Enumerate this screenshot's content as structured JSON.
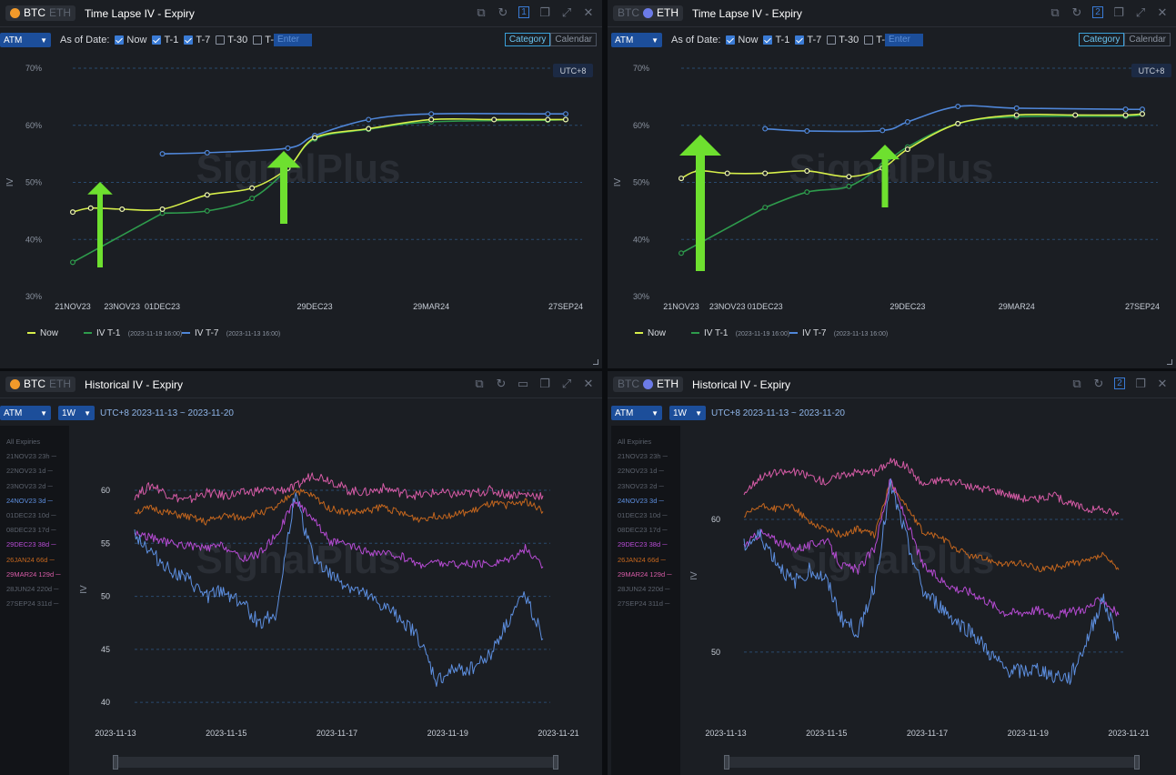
{
  "colors": {
    "now": "#d6ee4a",
    "t1": "#2e9b4c",
    "t7": "#4f86d8",
    "arrow": "#6ee02f",
    "m24": "#5d8fe0",
    "d29": "#b64bd3",
    "j26": "#c4661e",
    "m29": "#d65ba6",
    "grid": "#2a4a6e"
  },
  "common": {
    "atm": "ATM",
    "as_of": "As of Date:",
    "now": "Now",
    "t1": "T-1",
    "t7": "T-7",
    "t30": "T-30",
    "t_custom": "T-",
    "enter": "Enter",
    "category": "Category",
    "calendar": "Calendar",
    "utc": "UTC+8",
    "watermark": "SignalPlus",
    "btc": "BTC",
    "eth": "ETH",
    "period": "1W",
    "range": "UTC+8 2023-11-13 ~ 2023-11-20",
    "y_label": "IV"
  },
  "panels": {
    "p0": {
      "coin": "BTC",
      "title": "Time Lapse IV - Expiry",
      "badge": "1"
    },
    "p1": {
      "coin": "ETH",
      "title": "Time Lapse IV - Expiry",
      "badge": "2"
    },
    "p2": {
      "coin": "BTC",
      "title": "Historical IV - Expiry"
    },
    "p3": {
      "coin": "ETH",
      "title": "Historical IV - Expiry",
      "badge": "2"
    }
  },
  "legend": {
    "now": "Now",
    "t1": "IV T-1",
    "t1_date": "(2023-11-19 16:00)",
    "t7": "IV T-7",
    "t7_date": "(2023-11-13 16:00)"
  },
  "expiries": [
    "All Expiries",
    "21NOV23 23h",
    "22NOV23 1d",
    "23NOV23 2d",
    "24NOV23 3d",
    "01DEC23 10d",
    "08DEC23 17d",
    "29DEC23 38d",
    "26JAN24 66d",
    "29MAR24 129d",
    "28JUN24 220d",
    "27SEP24 311d"
  ],
  "chart_data": [
    {
      "type": "line",
      "title": "Time Lapse IV - Expiry (BTC)",
      "ylabel": "IV",
      "ylim": [
        30,
        70
      ],
      "y_ticks": [
        "30%",
        "40%",
        "50%",
        "60%",
        "70%"
      ],
      "x_ticks": [
        "21NOV23",
        "23NOV23",
        "01DEC23",
        "29DEC23",
        "29MAR24",
        "27SEP24"
      ],
      "x": [
        0,
        2,
        5.5,
        10,
        15,
        20,
        24,
        27,
        33,
        40,
        47,
        53,
        55
      ],
      "series": [
        {
          "name": "Now",
          "values": [
            44.8,
            45.5,
            45.3,
            45.3,
            47.8,
            49,
            52.5,
            57.8,
            59.4,
            61,
            61,
            61,
            61
          ]
        },
        {
          "name": "IV T-1",
          "values": [
            36,
            null,
            null,
            44.6,
            45,
            47.2,
            52.4,
            57.6,
            59.3,
            60.6,
            null,
            60.9,
            61
          ]
        },
        {
          "name": "IV T-7",
          "values": [
            null,
            null,
            null,
            55,
            55.2,
            null,
            56,
            58.2,
            61,
            62,
            null,
            62,
            62
          ]
        }
      ]
    },
    {
      "type": "line",
      "title": "Time Lapse IV - Expiry (ETH)",
      "ylabel": "IV",
      "ylim": [
        30,
        70
      ],
      "y_ticks": [
        "30%",
        "40%",
        "50%",
        "60%",
        "70%"
      ],
      "x_ticks": [
        "21NOV23",
        "23NOV23",
        "01DEC23",
        "29DEC23",
        "29MAR24",
        "27SEP24"
      ],
      "x": [
        0,
        2,
        5.5,
        10,
        15,
        20,
        24,
        27,
        33,
        40,
        47,
        53,
        55
      ],
      "series": [
        {
          "name": "Now",
          "values": [
            50.7,
            52,
            51.6,
            51.6,
            52,
            51,
            52.5,
            55.8,
            60.3,
            61.8,
            61.8,
            61.8,
            62
          ]
        },
        {
          "name": "IV T-1",
          "values": [
            37.6,
            null,
            null,
            45.6,
            48.3,
            49.3,
            53,
            56.2,
            60.3,
            61.5,
            null,
            61.6,
            62
          ]
        },
        {
          "name": "IV T-7",
          "values": [
            null,
            null,
            null,
            59.4,
            59,
            null,
            59.1,
            60.6,
            63.3,
            63,
            null,
            62.8,
            62.8
          ]
        }
      ]
    },
    {
      "type": "line",
      "title": "Historical IV - Expiry (BTC)",
      "ylabel": "IV",
      "ylim": [
        39.5,
        61.8
      ],
      "y_ticks": [
        "40",
        "45",
        "50",
        "55",
        "60"
      ],
      "x_ticks": [
        "2023-11-13",
        "2023-11-15",
        "2023-11-17",
        "2023-11-19",
        "2023-11-21"
      ],
      "series": [
        {
          "name": "29MAR24 129d",
          "values": [
            59.5,
            60.5,
            59.5,
            59,
            59.8,
            59.5,
            59.7,
            60,
            60,
            60.2,
            61.5,
            61,
            60,
            59.8,
            60.2,
            59.8,
            59.5,
            59.8,
            59.6,
            59.7,
            60,
            59.6,
            59.6,
            59.5
          ]
        },
        {
          "name": "26JAN24 66d",
          "values": [
            58,
            58.3,
            57.8,
            57.5,
            57,
            57.6,
            57.4,
            57.9,
            58.3,
            60,
            59.5,
            58.3,
            57.9,
            58,
            58.5,
            57.8,
            57.3,
            57.6,
            57.7,
            58,
            58.7,
            58.6,
            59,
            58
          ]
        },
        {
          "name": "29DEC23 38d",
          "values": [
            56,
            55.5,
            55,
            54.8,
            54.5,
            54.8,
            53.5,
            54,
            55.8,
            59,
            57.5,
            55.2,
            54.8,
            54.2,
            54,
            53.8,
            53,
            53.2,
            53,
            53,
            53,
            53.5,
            54.5,
            52.8
          ]
        },
        {
          "name": "24NOV23 3d",
          "values": [
            56,
            54,
            52.5,
            51.5,
            50,
            50.5,
            49.5,
            47.5,
            48.5,
            59.5,
            54,
            52,
            51,
            50,
            49,
            48,
            46,
            42,
            43,
            43.3,
            44.5,
            47.5,
            50.3,
            46
          ]
        }
      ]
    },
    {
      "type": "line",
      "title": "Historical IV - Expiry (ETH)",
      "ylabel": "IV",
      "ylim": [
        46.5,
        65
      ],
      "y_ticks": [
        "50",
        "60"
      ],
      "x_ticks": [
        "2023-11-13",
        "2023-11-15",
        "2023-11-17",
        "2023-11-19",
        "2023-11-21"
      ],
      "series": [
        {
          "name": "29MAR24 129d",
          "values": [
            62,
            63.2,
            63.5,
            63.6,
            63.3,
            62.8,
            63.4,
            63.6,
            63.5,
            64.4,
            64,
            62.6,
            63,
            62.8,
            62.4,
            62.3,
            62,
            61.6,
            61.5,
            61.8,
            61.2,
            60.8,
            60.7,
            60.4
          ]
        },
        {
          "name": "26JAN24 66d",
          "values": [
            60.2,
            61,
            60.8,
            61,
            59.8,
            59.3,
            58.8,
            59.3,
            58.8,
            62.8,
            60.9,
            59,
            58.7,
            57.8,
            57.2,
            57,
            56.6,
            56.7,
            56.3,
            56.3,
            56.7,
            56.8,
            57.3,
            56.2
          ]
        },
        {
          "name": "29DEC23 38d",
          "values": [
            58,
            59,
            58.4,
            57.8,
            58,
            58.5,
            56.5,
            56.2,
            57.8,
            63,
            59.8,
            56.5,
            55.5,
            54.8,
            54.5,
            53.8,
            53,
            53,
            53.2,
            52.8,
            53,
            53.3,
            54,
            52.8
          ]
        },
        {
          "name": "24NOV23 3d",
          "values": [
            58,
            58.8,
            56.8,
            55.2,
            56.2,
            55.5,
            52.5,
            51.5,
            55,
            62.5,
            58.5,
            54.5,
            53.5,
            52.3,
            51.5,
            50,
            48.7,
            48.5,
            48.7,
            48.3,
            48,
            50.7,
            54,
            51
          ]
        }
      ]
    }
  ]
}
